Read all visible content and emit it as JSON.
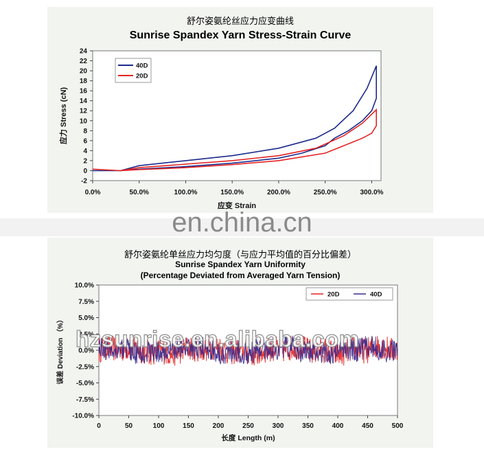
{
  "charts": {
    "top": {
      "title_cn": "舒尔姿氨纶丝应力应变曲线",
      "title_en": "Sunrise Spandex Yarn Stress-Strain Curve"
    },
    "bottom": {
      "title_cn": "舒尔姿氨纶单丝应力均匀度（与应力平均值的百分比偏差）",
      "title_en_line1": "Sunrise Spandex Yarn Uniformity",
      "title_en_line2": "(Percentage Deviated from Averaged Yarn Tension)"
    }
  },
  "watermarks": {
    "site": "en.china.cn",
    "shop": "hzsunrise.en.alibaba.com"
  },
  "chart_data": [
    {
      "type": "line",
      "title": "Sunrise Spandex Yarn Stress-Strain Curve",
      "xlabel": "应变 Strain",
      "ylabel": "应力 Stress (cN)",
      "xlim": [
        0,
        310
      ],
      "ylim": [
        -2,
        24
      ],
      "x_ticks": [
        "0.0%",
        "50.0%",
        "100.0%",
        "150.0%",
        "200.0%",
        "250.0%",
        "300.0%"
      ],
      "y_ticks": [
        "-2",
        "0",
        "2",
        "4",
        "6",
        "8",
        "10",
        "12",
        "14",
        "16",
        "18",
        "20",
        "22",
        "24"
      ],
      "legend_position": "top-left",
      "grid": false,
      "series": [
        {
          "name": "40D",
          "color": "#1b2a8c",
          "loading": [
            [
              0,
              0
            ],
            [
              30,
              0
            ],
            [
              50,
              1
            ],
            [
              100,
              2
            ],
            [
              150,
              3
            ],
            [
              200,
              4.5
            ],
            [
              240,
              6.5
            ],
            [
              260,
              8.5
            ],
            [
              280,
              12
            ],
            [
              295,
              16.5
            ],
            [
              305,
              21
            ]
          ],
          "unloading": [
            [
              305,
              21
            ],
            [
              305,
              14.5
            ],
            [
              300,
              12
            ],
            [
              290,
              10
            ],
            [
              275,
              8
            ],
            [
              260,
              6.5
            ],
            [
              250,
              5
            ],
            [
              225,
              3.5
            ],
            [
              200,
              2.5
            ],
            [
              150,
              1.5
            ],
            [
              100,
              0.8
            ],
            [
              50,
              0.3
            ],
            [
              30,
              0
            ]
          ]
        },
        {
          "name": "20D",
          "color": "#e32222",
          "loading": [
            [
              0,
              0.3
            ],
            [
              30,
              0
            ],
            [
              50,
              0.6
            ],
            [
              100,
              1.3
            ],
            [
              150,
              2
            ],
            [
              200,
              3
            ],
            [
              240,
              4.5
            ],
            [
              270,
              7
            ],
            [
              290,
              9.5
            ],
            [
              305,
              12.2
            ]
          ],
          "unloading": [
            [
              305,
              12.2
            ],
            [
              305,
              9
            ],
            [
              300,
              7.5
            ],
            [
              290,
              6.5
            ],
            [
              270,
              5
            ],
            [
              250,
              3.5
            ],
            [
              200,
              2
            ],
            [
              150,
              1.2
            ],
            [
              100,
              0.6
            ],
            [
              50,
              0.2
            ],
            [
              30,
              0
            ]
          ]
        }
      ]
    },
    {
      "type": "line",
      "title": "Sunrise Spandex Yarn Uniformity (Percentage Deviated from Averaged Yarn Tension)",
      "xlabel": "长度 Length (m)",
      "ylabel": "误差 Deviation （%）",
      "xlim": [
        0,
        500
      ],
      "ylim": [
        -10,
        10
      ],
      "x_ticks": [
        "0",
        "50",
        "100",
        "150",
        "200",
        "250",
        "300",
        "350",
        "400",
        "450",
        "500"
      ],
      "y_ticks": [
        "10.0%",
        "7.5%",
        "5.0%",
        "2.5%",
        "0.0%",
        "-2.5%",
        "-5.0%",
        "-7.5%",
        "-10.0%"
      ],
      "legend_position": "top-right",
      "grid": false,
      "series": [
        {
          "name": "20D",
          "color": "#e32222",
          "amplitude_pct": 2.5,
          "range": [
            -2.8,
            3.2
          ]
        },
        {
          "name": "40D",
          "color": "#3a2a8c",
          "amplitude_pct": 2.2,
          "range": [
            -2.5,
            2.6
          ]
        }
      ]
    }
  ]
}
